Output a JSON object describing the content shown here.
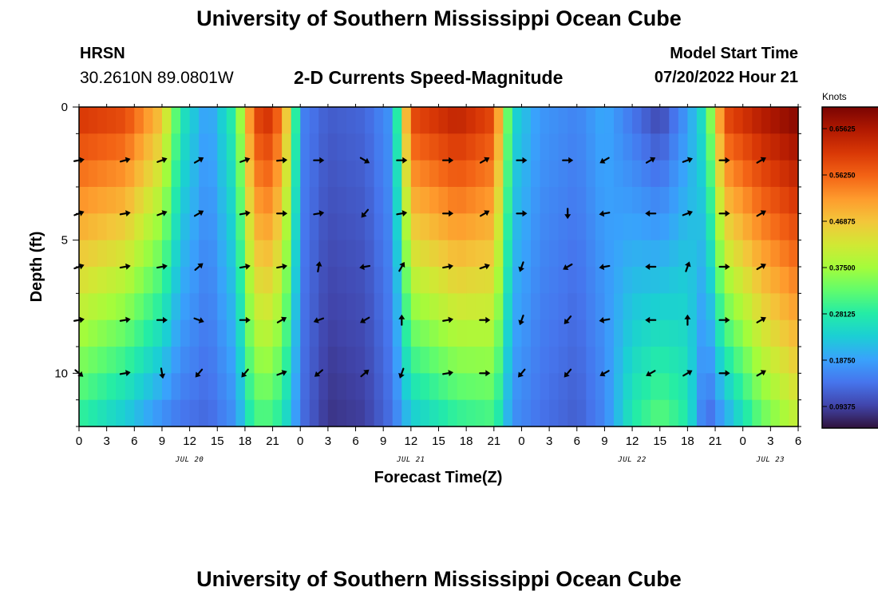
{
  "header": {
    "title": "University of Southern Mississippi Ocean Cube",
    "station": "HRSN",
    "coordinates": "30.2610N  89.0801W",
    "chart_title": "2-D Currents Speed-Magnitude",
    "model_start_label": "Model Start Time",
    "model_start_value": "07/20/2022 Hour 21"
  },
  "footer": {
    "title": "University of Southern Mississippi Ocean Cube"
  },
  "chart_data": {
    "type": "heatmap",
    "title": "2-D Currents Speed-Magnitude",
    "xlabel": "Forecast Time(Z)",
    "ylabel": "Depth (ft)",
    "x_range_hours": [
      0,
      78
    ],
    "y_range_ft": [
      0,
      12
    ],
    "y_ticks": [
      0,
      5,
      10
    ],
    "x_tick_labels": [
      "0",
      "3",
      "6",
      "9",
      "12",
      "15",
      "18",
      "21",
      "0",
      "3",
      "6",
      "9",
      "12",
      "15",
      "18",
      "21",
      "0",
      "3",
      "6",
      "9",
      "12",
      "15",
      "18",
      "21",
      "0",
      "3",
      "6"
    ],
    "date_labels": [
      {
        "label": "JUL 20",
        "hour": 12
      },
      {
        "label": "JUL 21",
        "hour": 36
      },
      {
        "label": "JUL 22",
        "hour": 60
      },
      {
        "label": "JUL 23",
        "hour": 75
      }
    ],
    "colorbar": {
      "unit": "Knots",
      "min": 0.05,
      "max": 0.7,
      "tick_labels": [
        "0.65625",
        "0.56250",
        "0.46875",
        "0.37500",
        "0.28125",
        "0.18750",
        "0.09375"
      ],
      "tick_values": [
        0.65625,
        0.5625,
        0.46875,
        0.375,
        0.28125,
        0.1875,
        0.09375
      ]
    },
    "colormap": [
      "#30123b",
      "#4145ab",
      "#4675ed",
      "#39a2fc",
      "#1bcfd4",
      "#24eca6",
      "#61fc6c",
      "#a4fc3b",
      "#d1e834",
      "#f3c63a",
      "#fe9b2d",
      "#f36315",
      "#d93806",
      "#b11901",
      "#7a0402"
    ],
    "speed_profile": [
      {
        "hour": 0,
        "surface": 0.62,
        "bottom": 0.28
      },
      {
        "hour": 5,
        "surface": 0.6,
        "bottom": 0.22
      },
      {
        "hour": 9,
        "surface": 0.48,
        "bottom": 0.16
      },
      {
        "hour": 11,
        "surface": 0.28,
        "bottom": 0.14
      },
      {
        "hour": 14,
        "surface": 0.18,
        "bottom": 0.13
      },
      {
        "hour": 17,
        "surface": 0.3,
        "bottom": 0.17
      },
      {
        "hour": 19,
        "surface": 0.6,
        "bottom": 0.3
      },
      {
        "hour": 21,
        "surface": 0.63,
        "bottom": 0.3
      },
      {
        "hour": 23,
        "surface": 0.42,
        "bottom": 0.22
      },
      {
        "hour": 24,
        "surface": 0.16,
        "bottom": 0.14
      },
      {
        "hour": 27,
        "surface": 0.12,
        "bottom": 0.08
      },
      {
        "hour": 31,
        "surface": 0.13,
        "bottom": 0.09
      },
      {
        "hour": 34,
        "surface": 0.18,
        "bottom": 0.14
      },
      {
        "hour": 36,
        "surface": 0.6,
        "bottom": 0.22
      },
      {
        "hour": 41,
        "surface": 0.65,
        "bottom": 0.28
      },
      {
        "hour": 45,
        "surface": 0.6,
        "bottom": 0.3
      },
      {
        "hour": 47,
        "surface": 0.25,
        "bottom": 0.17
      },
      {
        "hour": 50,
        "surface": 0.18,
        "bottom": 0.14
      },
      {
        "hour": 54,
        "surface": 0.16,
        "bottom": 0.12
      },
      {
        "hour": 57,
        "surface": 0.2,
        "bottom": 0.16
      },
      {
        "hour": 60,
        "surface": 0.14,
        "bottom": 0.28
      },
      {
        "hour": 63,
        "surface": 0.09,
        "bottom": 0.33
      },
      {
        "hour": 66,
        "surface": 0.18,
        "bottom": 0.28
      },
      {
        "hour": 68,
        "surface": 0.28,
        "bottom": 0.12
      },
      {
        "hour": 70,
        "surface": 0.6,
        "bottom": 0.18
      },
      {
        "hour": 74,
        "surface": 0.66,
        "bottom": 0.32
      },
      {
        "hour": 78,
        "surface": 0.7,
        "bottom": 0.4
      }
    ],
    "vectors": {
      "depths_ft": [
        2,
        4,
        6,
        8,
        10
      ],
      "hours": [
        0,
        5,
        9,
        13,
        18,
        22,
        26,
        31,
        35,
        40,
        44,
        48,
        53,
        57,
        62,
        66,
        70,
        74
      ],
      "directions_deg": [
        [
          80,
          75,
          70,
          60,
          70,
          85,
          90,
          120,
          90,
          90,
          60,
          90,
          90,
          240,
          60,
          70,
          90,
          60
        ],
        [
          70,
          80,
          70,
          60,
          80,
          90,
          80,
          220,
          80,
          90,
          60,
          90,
          180,
          260,
          270,
          70,
          90,
          60
        ],
        [
          70,
          80,
          80,
          50,
          80,
          80,
          10,
          260,
          30,
          80,
          70,
          200,
          240,
          260,
          270,
          20,
          90,
          60
        ],
        [
          80,
          80,
          90,
          110,
          90,
          60,
          250,
          240,
          0,
          80,
          90,
          200,
          220,
          260,
          270,
          0,
          90,
          60
        ],
        [
          130,
          80,
          170,
          220,
          220,
          70,
          230,
          50,
          200,
          80,
          90,
          220,
          220,
          240,
          240,
          60,
          90,
          60
        ]
      ]
    }
  }
}
